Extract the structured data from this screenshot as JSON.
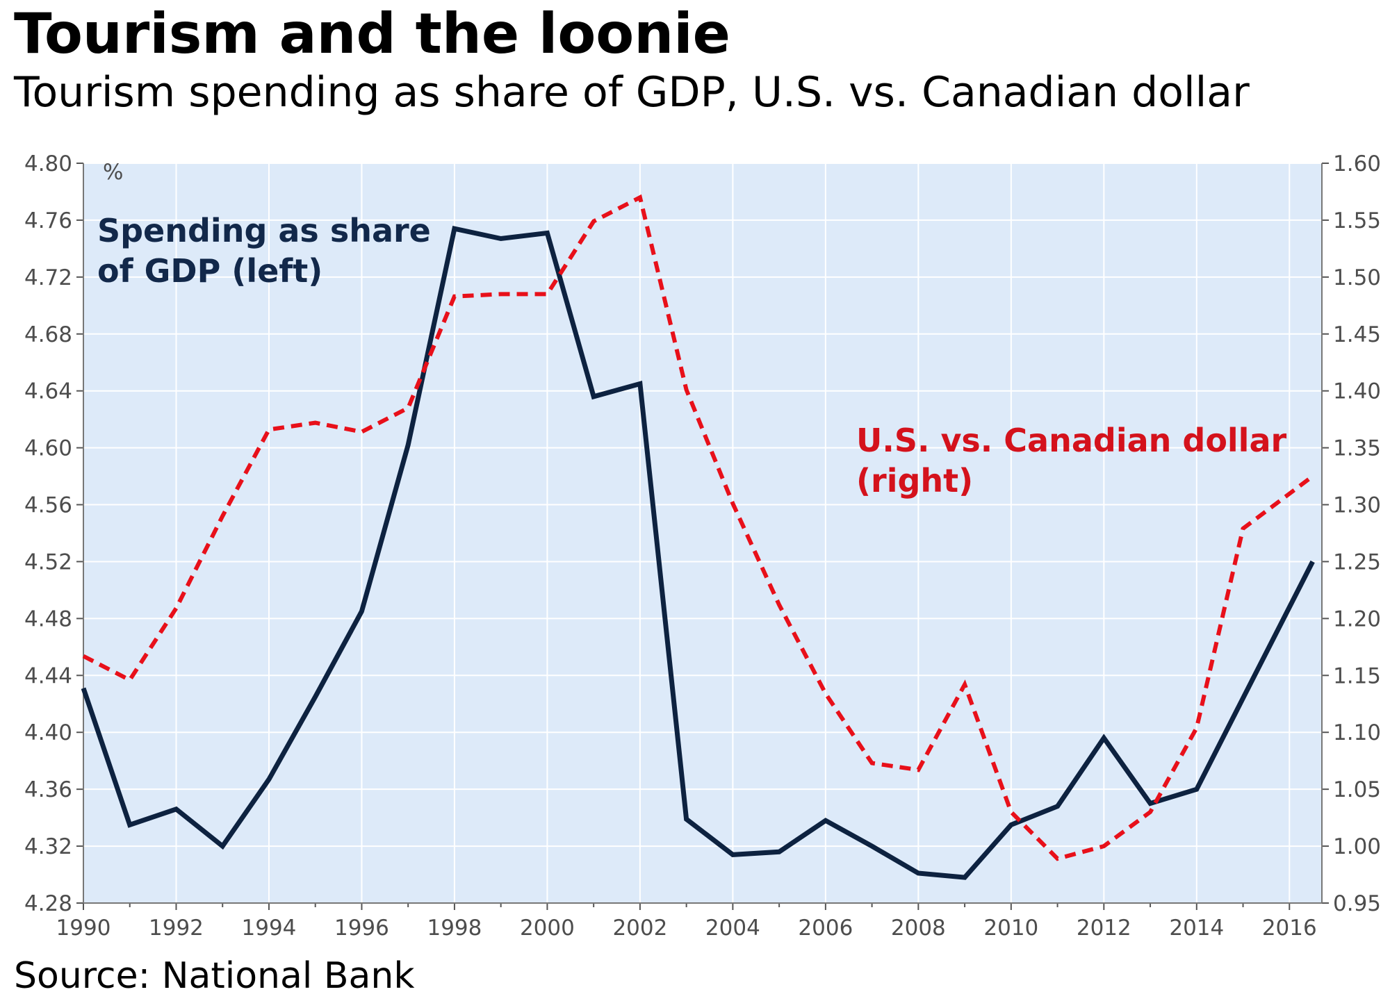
{
  "title": "Tourism and the loonie",
  "subtitle": "Tourism spending as share of GDP, U.S. vs. Canadian dollar",
  "source": "Source: National Bank",
  "colors": {
    "plot_background": "#ddeaf9",
    "spending_line": "#0d2240",
    "dollar_line": "#e8101a",
    "spending_label": "#12284a",
    "dollar_label": "#d4121c"
  },
  "chart_data": {
    "type": "line",
    "unit_label": "%",
    "x": [
      1990,
      1991,
      1992,
      1993,
      1994,
      1995,
      1996,
      1997,
      1998,
      1999,
      2000,
      2001,
      2002,
      2003,
      2004,
      2005,
      2006,
      2007,
      2008,
      2009,
      2010,
      2011,
      2012,
      2013,
      2014,
      2015,
      2016
    ],
    "xlim": [
      1990,
      2016.7
    ],
    "x_ticks": [
      "1990",
      "1992",
      "1994",
      "1996",
      "1998",
      "2000",
      "2002",
      "2004",
      "2006",
      "2008",
      "2010",
      "2012",
      "2014",
      "2016"
    ],
    "y_left": {
      "ylim": [
        4.28,
        4.8
      ],
      "ticks": [
        "4.28",
        "4.32",
        "4.36",
        "4.40",
        "4.44",
        "4.48",
        "4.52",
        "4.56",
        "4.60",
        "4.64",
        "4.68",
        "4.72",
        "4.76",
        "4.80"
      ]
    },
    "y_right": {
      "ylim": [
        0.95,
        1.6
      ],
      "ticks": [
        "0.95",
        "1.00",
        "1.05",
        "1.10",
        "1.15",
        "1.20",
        "1.25",
        "1.30",
        "1.35",
        "1.40",
        "1.45",
        "1.50",
        "1.55",
        "1.60"
      ]
    },
    "grid": true,
    "series": [
      {
        "name": "Spending as share of GDP (left)",
        "axis": "left",
        "style": "solid",
        "x": [
          1990,
          1991,
          1992,
          1993,
          1994,
          1995,
          1996,
          1997,
          1998,
          1999,
          2000,
          2001,
          2002,
          2003,
          2004,
          2005,
          2006,
          2007,
          2008,
          2009,
          2010,
          2011,
          2012,
          2013,
          2014,
          2015,
          2016.5
        ],
        "values": [
          4.431,
          4.335,
          4.346,
          4.32,
          4.367,
          4.425,
          4.485,
          4.602,
          4.754,
          4.747,
          4.751,
          4.636,
          4.645,
          4.339,
          4.314,
          4.316,
          4.338,
          4.32,
          4.301,
          4.298,
          4.335,
          4.348,
          4.396,
          4.35,
          4.36,
          4.424,
          4.52
        ]
      },
      {
        "name": "U.S. vs. Canadian dollar (right)",
        "axis": "right",
        "style": "dashed",
        "x": [
          1990,
          1991,
          1992,
          1993,
          1994,
          1995,
          1996,
          1997,
          1998,
          1999,
          2000,
          2001,
          2002,
          2003,
          2004,
          2005,
          2006,
          2007,
          2008,
          2009,
          2010,
          2011,
          2012,
          2013,
          2014,
          2015,
          2016.5
        ],
        "values": [
          1.167,
          1.146,
          1.209,
          1.29,
          1.366,
          1.372,
          1.364,
          1.385,
          1.483,
          1.485,
          1.485,
          1.549,
          1.57,
          1.401,
          1.301,
          1.212,
          1.134,
          1.073,
          1.067,
          1.142,
          1.03,
          0.989,
          1.0,
          1.03,
          1.104,
          1.279,
          1.325
        ]
      }
    ]
  }
}
